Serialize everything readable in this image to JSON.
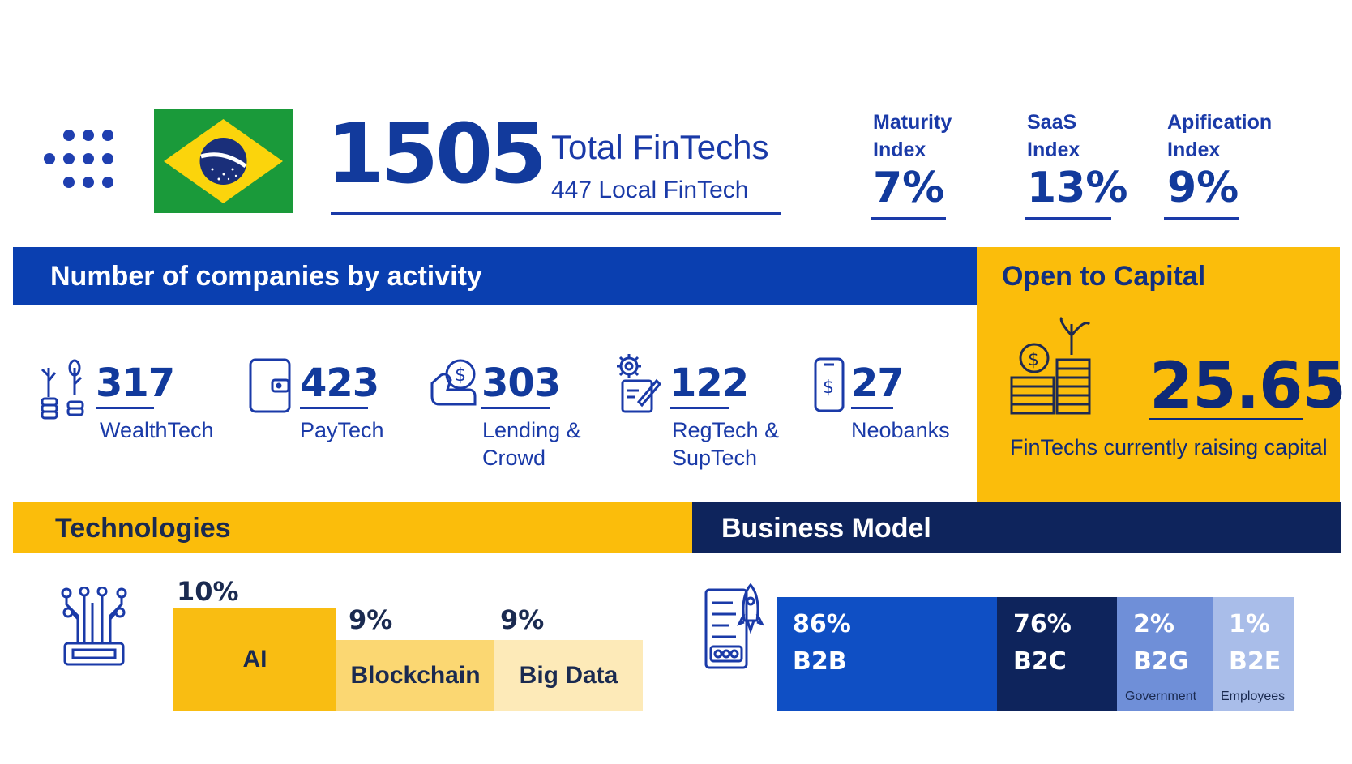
{
  "header": {
    "total_value": "1505",
    "total_label": "Total FinTechs",
    "local_label": "447 Local FinTech",
    "flag_icon": "brazil-flag-icon",
    "indices": [
      {
        "label_line1": "Maturity",
        "label_line2": "Index",
        "value": "7%"
      },
      {
        "label_line1": "SaaS",
        "label_line2": "Index",
        "value": "13%"
      },
      {
        "label_line1": "Apification",
        "label_line2": "Index",
        "value": "9%"
      }
    ]
  },
  "activity": {
    "title": "Number of companies by activity",
    "items": [
      {
        "value": "317",
        "label_line1": "WealthTech",
        "label_line2": "",
        "icon": "plant-coins-icon"
      },
      {
        "value": "423",
        "label_line1": "PayTech",
        "label_line2": "",
        "icon": "wallet-icon"
      },
      {
        "value": "303",
        "label_line1": "Lending &",
        "label_line2": "Crowd",
        "icon": "hand-coin-icon"
      },
      {
        "value": "122",
        "label_line1": "RegTech &",
        "label_line2": "SupTech",
        "icon": "gear-document-icon"
      },
      {
        "value": "27",
        "label_line1": "Neobanks",
        "label_line2": "",
        "icon": "smartphone-dollar-icon"
      }
    ]
  },
  "capital": {
    "title": "Open to Capital",
    "value": "25.65",
    "subtitle": "FinTechs currently raising capital",
    "icon": "money-growth-icon"
  },
  "technologies": {
    "title": "Technologies",
    "icon": "circuit-chip-icon",
    "items": [
      {
        "name": "AI",
        "pct": "10%",
        "value": 10,
        "color": "#f9bd12"
      },
      {
        "name": "Blockchain",
        "pct": "9%",
        "value": 9,
        "color": "#fbd772"
      },
      {
        "name": "Big Data",
        "pct": "9%",
        "value": 9,
        "color": "#fdeab8"
      }
    ]
  },
  "business_model": {
    "title": "Business Model",
    "icon": "document-rocket-icon",
    "segments": [
      {
        "pct": "86%",
        "label": "B2B",
        "sub": "",
        "value": 86,
        "color": "#0f4fc4"
      },
      {
        "pct": "76%",
        "label": "B2C",
        "sub": "",
        "value": 76,
        "color": "#0e245c"
      },
      {
        "pct": "2%",
        "label": "B2G",
        "sub": "Government",
        "value": 2,
        "color": "#6f8fd8"
      },
      {
        "pct": "1%",
        "label": "B2E",
        "sub": "Employees",
        "value": 1,
        "color": "#a9bde9"
      }
    ]
  }
}
